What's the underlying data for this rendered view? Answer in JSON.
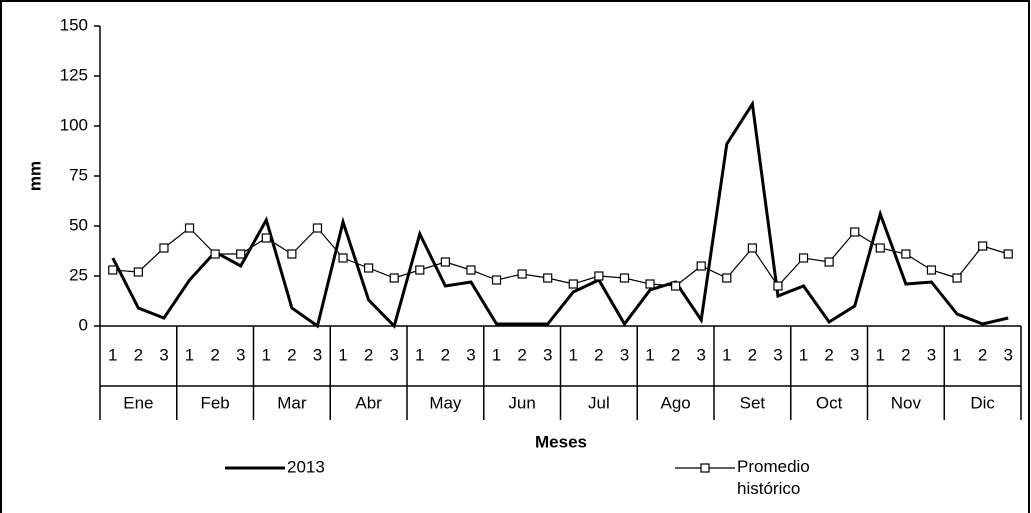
{
  "chart_data": {
    "type": "line",
    "y_label": "mm",
    "x_label": "Meses",
    "categories": [
      "1",
      "2",
      "3",
      "1",
      "2",
      "3",
      "1",
      "2",
      "3",
      "1",
      "2",
      "3",
      "1",
      "2",
      "3",
      "1",
      "2",
      "3",
      "1",
      "2",
      "3",
      "1",
      "2",
      "3",
      "1",
      "2",
      "3",
      "1",
      "2",
      "3",
      "1",
      "2",
      "3",
      "1",
      "2",
      "3"
    ],
    "category_groups": [
      "Ene",
      "Feb",
      "Mar",
      "Abr",
      "May",
      "Jun",
      "Jul",
      "Ago",
      "Set",
      "Oct",
      "Nov",
      "Dic"
    ],
    "series": [
      {
        "name": "2013",
        "color": "#000000",
        "marker": "none",
        "values": [
          34,
          9,
          4,
          23,
          37,
          30,
          53,
          9,
          0,
          52,
          13,
          0,
          46,
          20,
          22,
          1,
          1,
          1,
          17,
          23,
          1,
          18,
          22,
          3,
          91,
          111,
          15,
          20,
          2,
          10,
          56,
          21,
          22,
          6,
          1,
          4
        ]
      },
      {
        "name": "Promedio histórico",
        "color": "#000000",
        "marker": "square",
        "values": [
          28,
          27,
          39,
          49,
          36,
          36,
          44,
          36,
          49,
          34,
          29,
          24,
          28,
          32,
          28,
          23,
          26,
          24,
          21,
          25,
          24,
          21,
          20,
          30,
          24,
          39,
          20,
          34,
          32,
          47,
          39,
          36,
          28,
          24,
          40,
          36
        ]
      }
    ],
    "ylim": [
      0,
      150
    ],
    "yticks": [
      0,
      25,
      50,
      75,
      100,
      125,
      150
    ],
    "grid": false
  }
}
